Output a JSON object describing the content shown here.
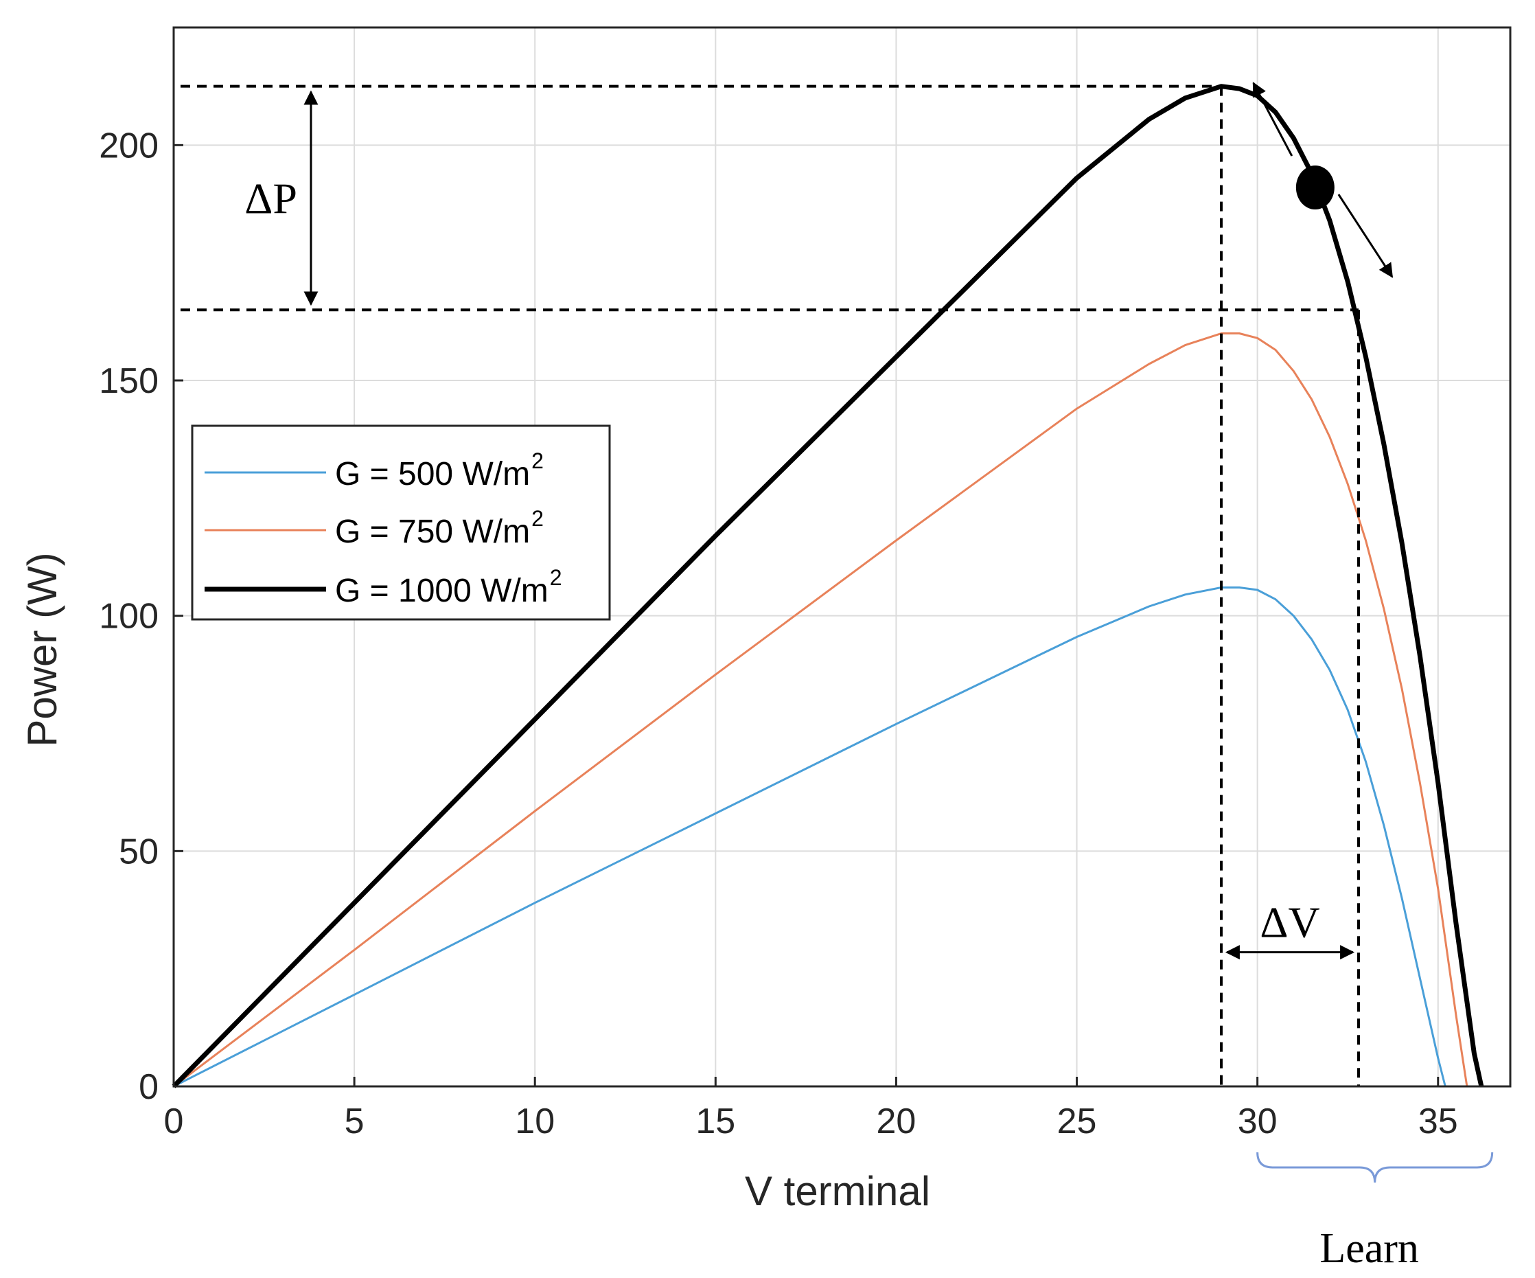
{
  "chart_data": {
    "type": "line",
    "title": "",
    "xlabel": "V terminal",
    "ylabel": "Power (W)",
    "xlim": [
      0,
      37
    ],
    "ylim": [
      0,
      225
    ],
    "xticks": [
      0,
      5,
      10,
      15,
      20,
      25,
      30,
      35
    ],
    "yticks": [
      0,
      50,
      100,
      150,
      200
    ],
    "grid": true,
    "legend_position": "left-middle",
    "series": [
      {
        "name": "G = 500 W/m",
        "superscript": "2",
        "color": "#4a9fd8",
        "style": "thin",
        "x": [
          0,
          5,
          10,
          15,
          20,
          25,
          27,
          28,
          29,
          29.5,
          30,
          30.5,
          31,
          31.5,
          32,
          32.5,
          33,
          33.5,
          34,
          34.5,
          35,
          35.2
        ],
        "y": [
          0,
          19.5,
          39,
          58,
          77,
          95.5,
          102,
          104.5,
          106,
          106,
          105.5,
          103.5,
          100,
          95,
          88.5,
          80,
          69,
          55.5,
          40,
          23,
          6,
          0
        ]
      },
      {
        "name": "G = 750 W/m",
        "superscript": "2",
        "color": "#e8825a",
        "style": "thin",
        "x": [
          0,
          5,
          10,
          15,
          20,
          25,
          27,
          28,
          29,
          29.5,
          30,
          30.5,
          31,
          31.5,
          32,
          32.5,
          33,
          33.5,
          34,
          34.5,
          35,
          35.5,
          35.8
        ],
        "y": [
          0,
          29,
          58.5,
          87.5,
          116,
          144,
          153.5,
          157.5,
          160,
          160,
          159,
          156.5,
          152,
          146,
          138,
          128,
          116,
          101.5,
          84.5,
          64.5,
          42,
          15,
          0
        ]
      },
      {
        "name": "G = 1000 W/m",
        "superscript": "2",
        "color": "#000000",
        "style": "thick",
        "x": [
          0,
          5,
          10,
          15,
          20,
          25,
          27,
          28,
          29,
          29.5,
          30,
          30.5,
          31,
          31.5,
          32,
          32.5,
          33,
          33.5,
          34,
          34.5,
          35,
          35.5,
          36,
          36.2
        ],
        "y": [
          0,
          39,
          78,
          117,
          155,
          193,
          205.5,
          210,
          212.5,
          212,
          210.5,
          207,
          201.5,
          194,
          184,
          171,
          155,
          136.5,
          115.5,
          91.5,
          64.5,
          34.5,
          7,
          0
        ]
      }
    ],
    "annotations": {
      "delta_p": "ΔP",
      "delta_v": "ΔV",
      "learn": "Learn",
      "p_max": 212.5,
      "p_low": 165,
      "v_mpp": 29,
      "v_right": 32.8,
      "operating_point": [
        31.6,
        191
      ],
      "learn_range": [
        30,
        36.5
      ]
    }
  }
}
